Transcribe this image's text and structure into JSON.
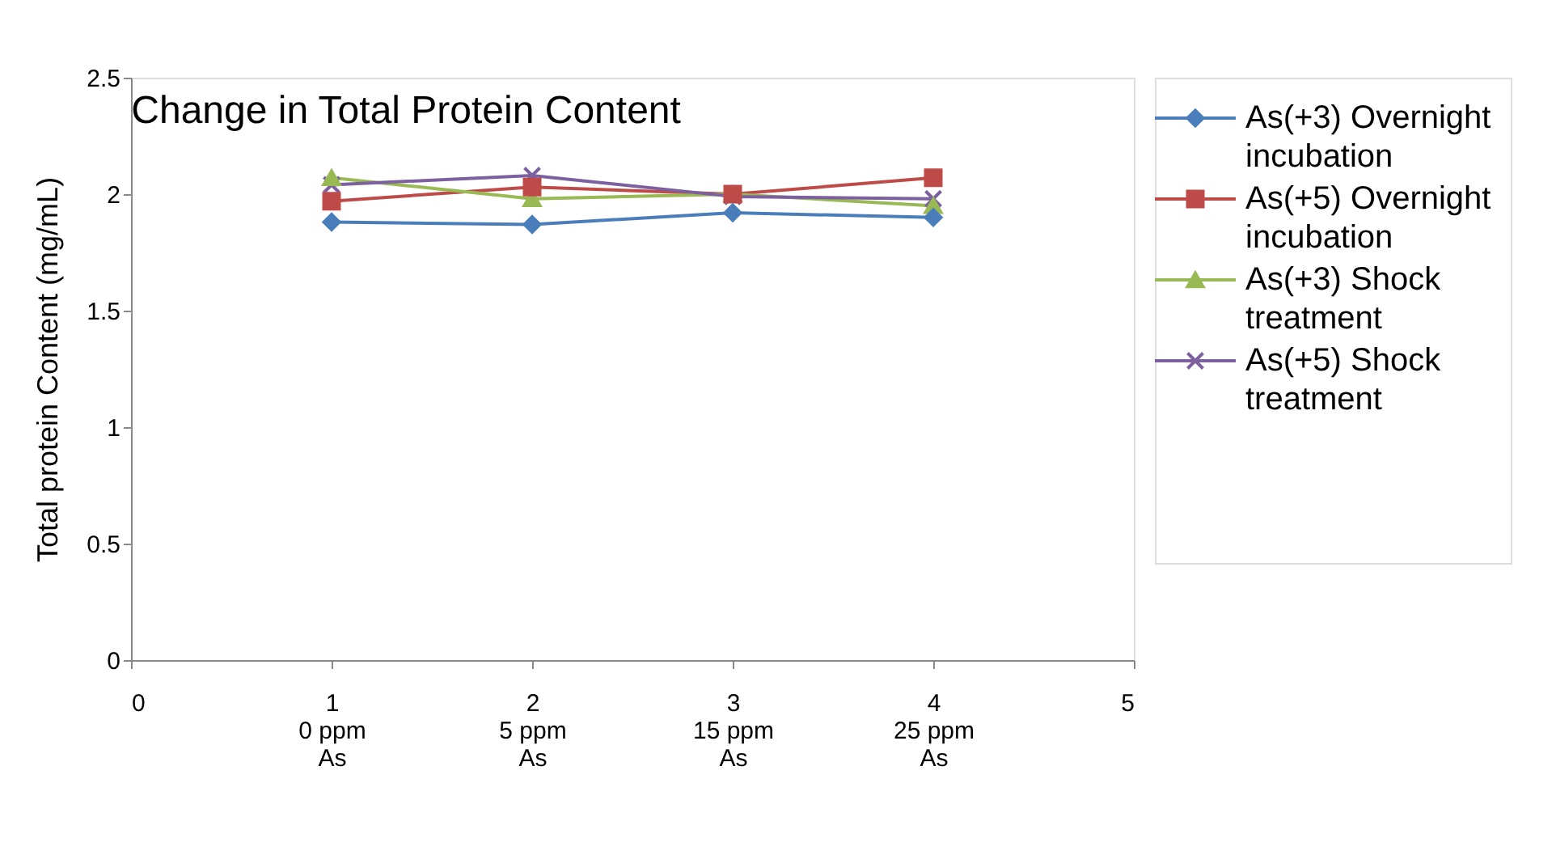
{
  "chart_data": {
    "type": "line",
    "title": "Change in Total Protein Content",
    "ylabel": "Total protein Content  (mg/mL)",
    "x": [
      1,
      2,
      3,
      4
    ],
    "xlim": [
      0,
      5
    ],
    "xticks": [
      0,
      {
        "value": 1,
        "label": "1\n0 ppm\nAs"
      },
      {
        "value": 2,
        "label": "2\n5 ppm\nAs"
      },
      {
        "value": 3,
        "label": "3\n15 ppm\nAs"
      },
      {
        "value": 4,
        "label": "4\n25 ppm\nAs"
      },
      5
    ],
    "ylim": [
      0,
      2.5
    ],
    "yticks": [
      0,
      0.5,
      1,
      1.5,
      2,
      2.5
    ],
    "grid": false,
    "legend": "right",
    "series": [
      {
        "name": "As(+3) Overnight incubation",
        "color": "#4a7ebb",
        "marker": "diamond",
        "values": [
          1.88,
          1.87,
          1.92,
          1.9
        ]
      },
      {
        "name": "As(+5) Overnight incubation",
        "color": "#be4b48",
        "marker": "square",
        "values": [
          1.97,
          2.03,
          2.0,
          2.07
        ]
      },
      {
        "name": "As(+3) Shock treatment",
        "color": "#98b954",
        "marker": "triangle",
        "values": [
          2.07,
          1.98,
          2.0,
          1.95
        ]
      },
      {
        "name": "As(+5) Shock treatment",
        "color": "#7d60a0",
        "marker": "cross",
        "values": [
          2.04,
          2.08,
          1.99,
          1.98
        ]
      }
    ]
  }
}
